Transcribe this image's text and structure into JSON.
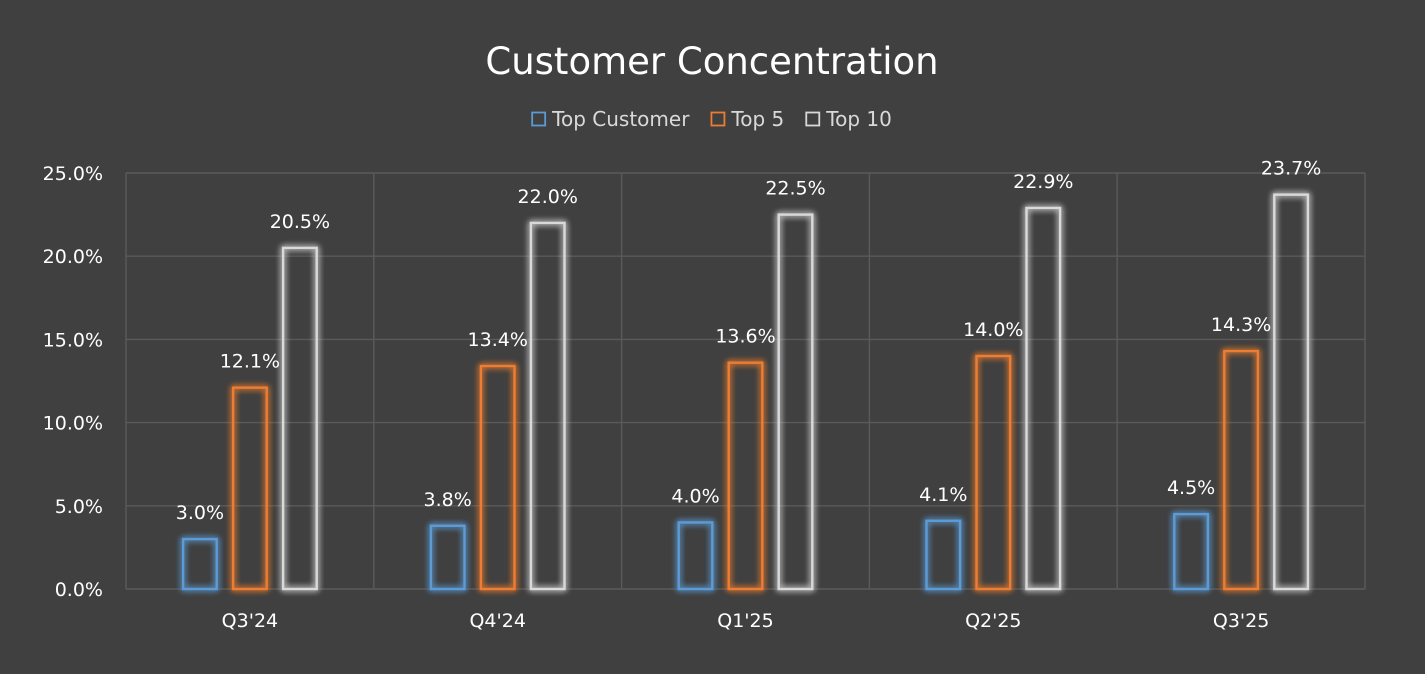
{
  "chart_data": {
    "type": "bar",
    "title": "Customer Concentration",
    "xlabel": "",
    "ylabel": "",
    "categories": [
      "Q3'24",
      "Q4'24",
      "Q1'25",
      "Q2'25",
      "Q3'25"
    ],
    "series": [
      {
        "name": "Top Customer",
        "color": "#5b9bd5",
        "values": [
          3.0,
          3.8,
          4.0,
          4.1,
          4.5
        ],
        "labels": [
          "3.0%",
          "3.8%",
          "4.0%",
          "4.1%",
          "4.5%"
        ]
      },
      {
        "name": "Top 5",
        "color": "#ed7d31",
        "values": [
          12.1,
          13.4,
          13.6,
          14.0,
          14.3
        ],
        "labels": [
          "12.1%",
          "13.4%",
          "13.6%",
          "14.0%",
          "14.3%"
        ]
      },
      {
        "name": "Top 10",
        "color": "#d9d9d9",
        "values": [
          20.5,
          22.0,
          22.5,
          22.9,
          23.7
        ],
        "labels": [
          "20.5%",
          "22.0%",
          "22.5%",
          "22.9%",
          "23.7%"
        ]
      }
    ],
    "ylim": [
      0,
      25
    ],
    "yticks": [
      0,
      5,
      10,
      15,
      20,
      25
    ],
    "ytick_labels": [
      "0.0%",
      "5.0%",
      "10.0%",
      "15.0%",
      "20.0%",
      "25.0%"
    ],
    "grid": true,
    "legend_position": "top-center",
    "background": "#404040"
  }
}
